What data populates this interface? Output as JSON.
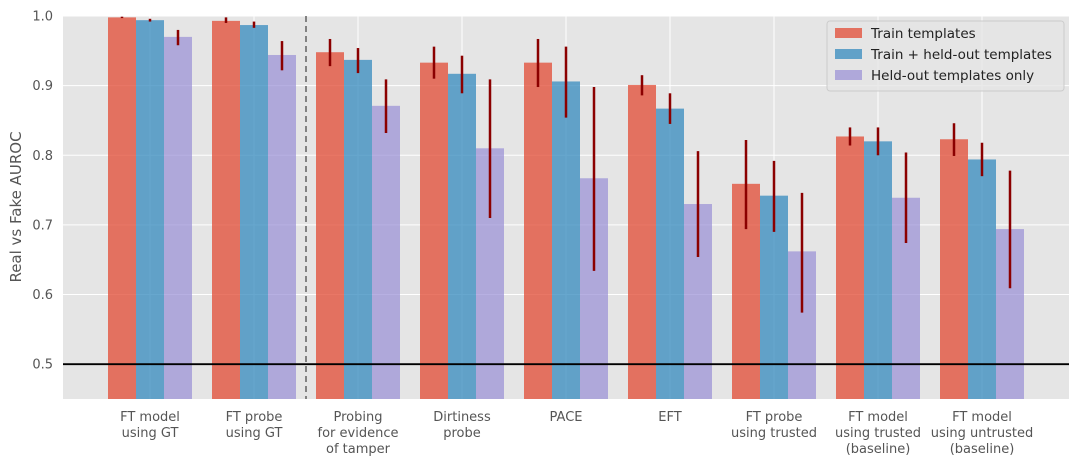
{
  "chart_data": {
    "type": "bar",
    "title": "",
    "xlabel": "",
    "ylabel": "Real vs Fake AUROC",
    "ylim": [
      0.45,
      1.0
    ],
    "yticks": [
      "0.5",
      "0.6",
      "0.7",
      "0.8",
      "0.9",
      "1.0"
    ],
    "grid": true,
    "legend_position": "top-right",
    "reference_line": 0.5,
    "separator_after_category": 2,
    "categories": [
      [
        "FT model",
        "using GT"
      ],
      [
        "FT probe",
        "using GT"
      ],
      [
        "Probing",
        "for evidence",
        "of tamper"
      ],
      [
        "Dirtiness",
        "probe"
      ],
      [
        "PACE"
      ],
      [
        "EFT"
      ],
      [
        "FT probe",
        "using trusted"
      ],
      [
        "FT model",
        "using trusted",
        "(baseline)"
      ],
      [
        "FT model",
        "using untrusted",
        "(baseline)"
      ]
    ],
    "series": [
      {
        "name": "Train templates",
        "color": "#E24A33",
        "values": [
          0.998,
          0.993,
          0.948,
          0.933,
          0.933,
          0.901,
          0.759,
          0.827,
          0.823
        ],
        "err_low": [
          0.997,
          0.99,
          0.928,
          0.91,
          0.898,
          0.886,
          0.694,
          0.814,
          0.799
        ],
        "err_high": [
          0.999,
          0.998,
          0.967,
          0.956,
          0.967,
          0.915,
          0.822,
          0.84,
          0.846
        ]
      },
      {
        "name": "Train + held-out templates",
        "color": "#348ABD",
        "values": [
          0.994,
          0.987,
          0.937,
          0.917,
          0.906,
          0.867,
          0.742,
          0.82,
          0.794
        ],
        "err_low": [
          0.992,
          0.983,
          0.918,
          0.889,
          0.854,
          0.845,
          0.69,
          0.8,
          0.77
        ],
        "err_high": [
          0.996,
          0.992,
          0.954,
          0.943,
          0.956,
          0.889,
          0.792,
          0.84,
          0.818
        ]
      },
      {
        "name": "Held-out templates only",
        "color": "#988ED5",
        "values": [
          0.97,
          0.944,
          0.871,
          0.81,
          0.767,
          0.73,
          0.662,
          0.739,
          0.694
        ],
        "err_low": [
          0.958,
          0.922,
          0.832,
          0.71,
          0.634,
          0.654,
          0.574,
          0.674,
          0.609
        ],
        "err_high": [
          0.98,
          0.964,
          0.909,
          0.909,
          0.898,
          0.806,
          0.746,
          0.804,
          0.778
        ]
      }
    ],
    "error_bar_color": "#8B0000"
  }
}
